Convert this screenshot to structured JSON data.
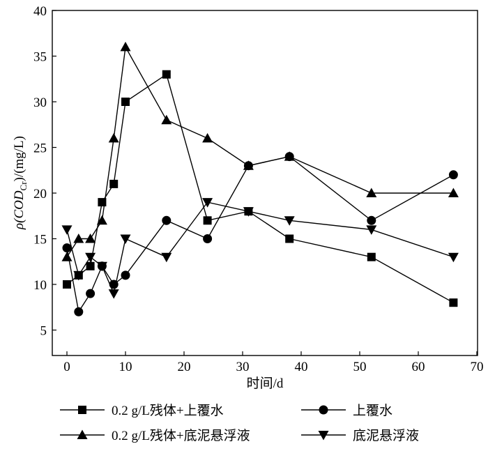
{
  "chart_data": {
    "type": "line",
    "xlabel": "时间/d",
    "ylabel": "ρ(COD_Cr)/(mg/L)",
    "ylabel_parts": {
      "prefix": "ρ(COD",
      "sub": "Cr",
      "suffix": ")/(mg/L)"
    },
    "xlim": [
      -2,
      70
    ],
    "ylim": [
      2.5,
      40
    ],
    "xticks": [
      0,
      10,
      20,
      30,
      40,
      50,
      60,
      70
    ],
    "yticks": [
      5,
      10,
      15,
      20,
      25,
      30,
      35,
      40
    ],
    "grid": false,
    "legend_position": "bottom",
    "series": [
      {
        "name": "0.2 g/L残体+上覆水",
        "marker": "square",
        "x": [
          0,
          2,
          4,
          6,
          8,
          10,
          17,
          24,
          31,
          38,
          52,
          66
        ],
        "y": [
          10,
          11,
          12,
          19,
          21,
          30,
          33,
          17,
          18,
          15,
          13,
          8
        ]
      },
      {
        "name": "上覆水",
        "marker": "circle",
        "x": [
          0,
          2,
          4,
          6,
          8,
          10,
          17,
          24,
          31,
          38,
          52,
          66
        ],
        "y": [
          14,
          7,
          9,
          12,
          10,
          11,
          17,
          15,
          23,
          24,
          17,
          22
        ]
      },
      {
        "name": "0.2 g/L残体+底泥悬浮液",
        "marker": "triangle-up",
        "x": [
          0,
          2,
          4,
          6,
          8,
          10,
          17,
          24,
          31,
          38,
          52,
          66
        ],
        "y": [
          13,
          15,
          15,
          17,
          26,
          36,
          28,
          26,
          23,
          24,
          20,
          20
        ]
      },
      {
        "name": "底泥悬浮液",
        "marker": "triangle-down",
        "x": [
          0,
          2,
          4,
          6,
          8,
          10,
          17,
          24,
          31,
          38,
          52,
          66
        ],
        "y": [
          16,
          11,
          13,
          12,
          9,
          15,
          13,
          19,
          18,
          17,
          16,
          13
        ]
      }
    ]
  }
}
